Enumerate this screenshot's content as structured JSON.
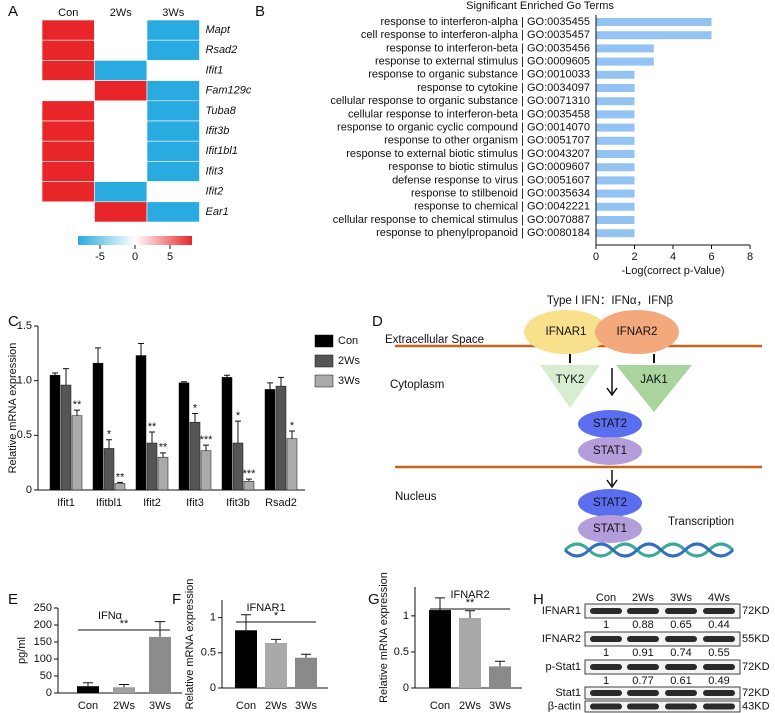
{
  "panel_labels": [
    "A",
    "B",
    "C",
    "D",
    "E",
    "F",
    "G",
    "H"
  ],
  "chart_data": [
    {
      "type": "heatmap",
      "columns": [
        "Con",
        "2Ws",
        "3Ws"
      ],
      "rows": [
        "Mapt",
        "Rsad2",
        "Ifit1",
        "Fam129c",
        "Tuba8",
        "Ifit3b",
        "Ifit1bl1",
        "Ifit3",
        "Ifit2",
        "Ear1"
      ],
      "values": [
        [
          5,
          0,
          -5
        ],
        [
          5,
          0,
          -5
        ],
        [
          5,
          -5,
          0
        ],
        [
          0,
          5,
          -5
        ],
        [
          5,
          0,
          -5
        ],
        [
          5,
          0,
          -5
        ],
        [
          5,
          0,
          -5
        ],
        [
          5,
          0,
          -5
        ],
        [
          5,
          -5,
          0
        ],
        [
          0,
          5,
          -5
        ]
      ],
      "zlim": [
        -5,
        5
      ],
      "zticks": [
        -5,
        0,
        5
      ],
      "low_color": "#29aae1",
      "mid_color": "#ffffff",
      "high_color": "#e8262a"
    },
    {
      "type": "hbar",
      "title": "Significant Enriched Go Terms",
      "categories": [
        "response to interferon-alpha | GO:0035455",
        "cell response to interferon-alpha | GO:0035457",
        "response to interferon-beta | GO:0035456",
        "response to external stimulus | GO:0009605",
        "response to organic substance | GO:0010033",
        "response to cytokine | GO:0034097",
        "cellular response to organic substance | GO:0071310",
        "cellular response to interferon-beta | GO:0035458",
        "response to organic cyclic compound | GO:0014070",
        "response to other organism | GO:0051707",
        "response to external biotic stimulus | GO:0043207",
        "response to biotic stimulus | GO:0009607",
        "defense response to virus | GO:0051607",
        "response to stilbenoid | GO:0035634",
        "response to chemical | GO:0042221",
        "cellular response to chemical stimulus | GO:0070887",
        "response to phenylpropanoid | GO:0080184"
      ],
      "values": [
        6,
        6,
        3,
        3,
        2,
        2,
        2,
        2,
        2,
        2,
        2,
        2,
        2,
        2,
        2,
        2,
        2
      ],
      "color": "#92c3f2",
      "xlim": [
        0,
        8
      ],
      "xticks": [
        0,
        2,
        4,
        6,
        8
      ],
      "xlabel": "-Log(correct p-Value)"
    },
    {
      "type": "grouped_bar",
      "ylabel": "Relative mRNA expression",
      "categories": [
        "Ifit1",
        "Ifitbl1",
        "Ifit2",
        "Ifit3",
        "Ifit3b",
        "Rsad2"
      ],
      "ylim": [
        0,
        1.5
      ],
      "yticks": [
        0,
        0.5,
        {
          "value": 1,
          "label": "1.0"
        },
        1.5
      ],
      "series": [
        {
          "name": "Con",
          "color": "#000000",
          "values": [
            1.05,
            1.16,
            1.23,
            0.98,
            1.03,
            0.92
          ],
          "errors": [
            0.02,
            0.14,
            0.11,
            0.01,
            0.02,
            0.06
          ],
          "significance": [
            null,
            null,
            null,
            null,
            null,
            null
          ]
        },
        {
          "name": "2Ws",
          "color": "#555555",
          "values": [
            0.96,
            0.38,
            0.43,
            0.62,
            0.43,
            0.95
          ],
          "errors": [
            0.15,
            0.08,
            0.1,
            0.08,
            0.2,
            0.08
          ],
          "significance": [
            null,
            "*",
            "**",
            "*",
            "*",
            null
          ]
        },
        {
          "name": "3Ws",
          "color": "#aaaaaa",
          "values": [
            0.68,
            0.06,
            0.3,
            0.36,
            0.08,
            0.47
          ],
          "errors": [
            0.05,
            0.01,
            0.04,
            0.05,
            0.02,
            0.07
          ],
          "significance": [
            "**",
            "**",
            "**",
            "***",
            "***",
            "*"
          ]
        }
      ]
    },
    {
      "type": "bar",
      "title": "IFNα",
      "ylabel": "pg/ml",
      "categories": [
        "Con",
        "2Ws",
        "3Ws"
      ],
      "values": [
        20,
        17,
        165
      ],
      "errors": [
        10,
        8,
        45
      ],
      "colors": [
        "#000000",
        "#a0a0a0",
        "#8c8c8c"
      ],
      "ylim": [
        0,
        250
      ],
      "yticks": [
        0,
        50,
        100,
        150,
        200,
        250
      ],
      "significance": "**"
    },
    {
      "type": "bar",
      "title": "IFNAR1",
      "ylabel": "Relative mRNA expression",
      "categories": [
        "Con",
        "2Ws",
        "3Ws"
      ],
      "values": [
        0.82,
        0.64,
        0.43
      ],
      "errors": [
        0.22,
        0.05,
        0.05
      ],
      "colors": [
        "#000000",
        "#a9a9a9",
        "#8a8a8a"
      ],
      "ylim": [
        0,
        1.25
      ],
      "yticks": [
        0,
        0.5,
        1
      ],
      "significance": "*"
    },
    {
      "type": "bar",
      "title": "IFNAR2",
      "ylabel": "Relative mRNA expression",
      "categories": [
        "Con",
        "2Ws",
        "3Ws"
      ],
      "values": [
        1.08,
        0.97,
        0.3
      ],
      "errors": [
        0.17,
        0.1,
        0.07
      ],
      "colors": [
        "#000000",
        "#a9a9a9",
        "#8a8a8a"
      ],
      "ylim": [
        0,
        1.4
      ],
      "yticks": [
        0,
        0.5,
        1
      ],
      "significance": "**"
    }
  ],
  "diagram": {
    "ligand": "Type I IFN：IFNα，IFNβ",
    "compartments": [
      "Extracellular Space",
      "Cytoplasm",
      "Nucleus"
    ],
    "receptors": [
      "IFNAR1",
      "IFNAR2"
    ],
    "kinases": [
      "TYK2",
      "JAK1"
    ],
    "cytoplasm_complex": [
      "STAT2",
      "STAT1"
    ],
    "nucleus_complex": [
      "STAT2",
      "STAT1"
    ],
    "output": "Transcription"
  },
  "blot": {
    "lanes": [
      "Con",
      "2Ws",
      "3Ws",
      "4Ws"
    ],
    "rows": [
      {
        "label": "IFNAR1",
        "size": "72KD",
        "quantification": [
          1,
          0.88,
          0.65,
          0.44
        ]
      },
      {
        "label": "IFNAR2",
        "size": "55KD",
        "quantification": [
          1,
          0.91,
          0.74,
          0.55
        ]
      },
      {
        "label": "p-Stat1",
        "size": "72KD",
        "quantification": [
          1,
          0.77,
          0.61,
          0.49
        ]
      },
      {
        "label": "Stat1",
        "size": "72KD"
      },
      {
        "label": "β-actin",
        "size": "43KD"
      }
    ]
  }
}
